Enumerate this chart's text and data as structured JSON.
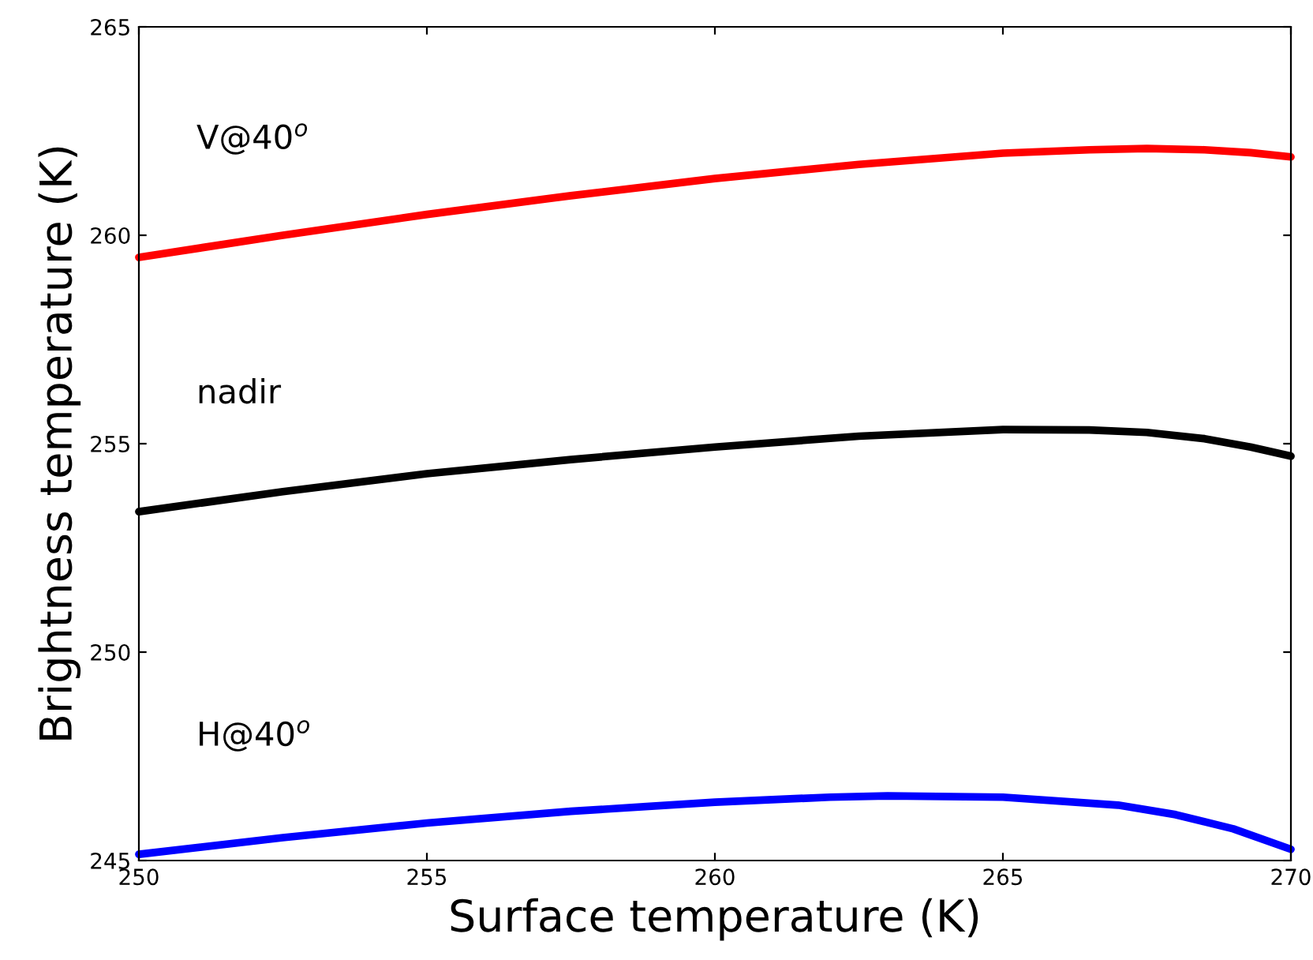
{
  "chart_data": {
    "type": "line",
    "xlabel": "Surface temperature (K)",
    "ylabel": "Brightness temperature (K)",
    "xlim": [
      250,
      270
    ],
    "xticks": [
      250,
      255,
      260,
      265,
      270
    ],
    "ylim": [
      245,
      265
    ],
    "yticks": [
      245,
      250,
      255,
      260,
      265
    ],
    "grid": false,
    "legend": false,
    "series": [
      {
        "name": "V@40$^{o}$",
        "color": "#ff0000",
        "x": [
          250,
          252.5,
          255,
          257.5,
          260,
          262.5,
          265,
          266.5,
          267.5,
          268.5,
          269.3,
          270
        ],
        "values": [
          259.47,
          260.0,
          260.5,
          260.95,
          261.36,
          261.7,
          261.97,
          262.05,
          262.08,
          262.05,
          261.98,
          261.88
        ]
      },
      {
        "name": "nadir",
        "color": "#000000",
        "x": [
          250,
          252.5,
          255,
          257.5,
          260,
          262.5,
          265,
          266.5,
          267.5,
          268.5,
          269.3,
          270
        ],
        "values": [
          253.37,
          253.85,
          254.28,
          254.62,
          254.92,
          255.18,
          255.34,
          255.33,
          255.27,
          255.12,
          254.92,
          254.7
        ]
      },
      {
        "name": "H@40$^{o}$",
        "color": "#0000ff",
        "x": [
          250,
          252.5,
          255,
          257.5,
          260,
          262,
          263,
          265,
          267,
          268,
          269,
          270
        ],
        "values": [
          245.15,
          245.55,
          245.9,
          246.18,
          246.4,
          246.52,
          246.55,
          246.52,
          246.33,
          246.1,
          245.76,
          245.27
        ]
      }
    ]
  }
}
